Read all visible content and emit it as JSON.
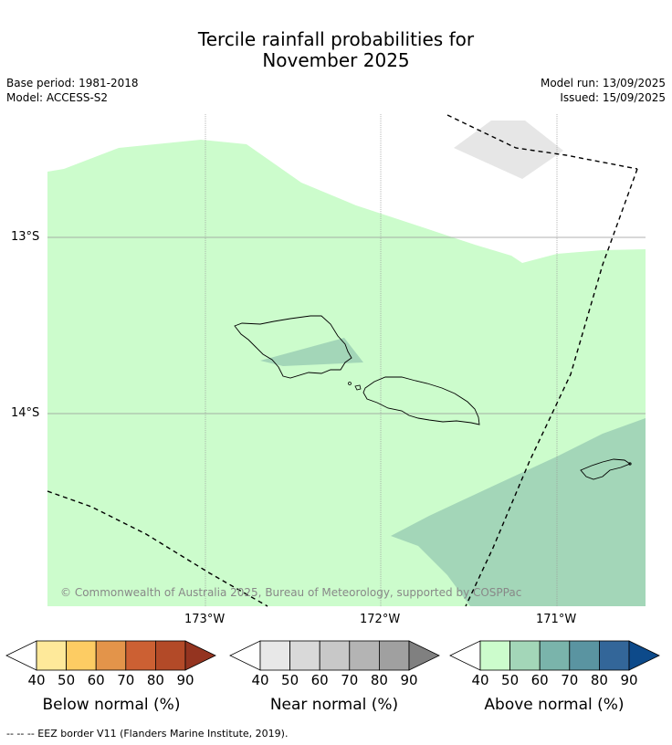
{
  "title_line1": "Tercile rainfall probabilities for",
  "title_line2": "November 2025",
  "base_period": "Base period: 1981-2018",
  "model": "Model: ACCESS-S2",
  "model_run": "Model run: 13/09/2025",
  "issued": "Issued: 15/09/2025",
  "lat_labels": [
    "13°S",
    "14°S"
  ],
  "lon_labels": [
    "173°W",
    "172°W",
    "171°W"
  ],
  "copyright": "© Commonwealth of Australia 2025, Bureau of Meteorology, supported by COSPPac",
  "colorbars": [
    {
      "label": "Below normal (%)",
      "colors": [
        "#ffffff",
        "#fee99a",
        "#fdcc63",
        "#e3944a",
        "#cc6033",
        "#b34a28",
        "#943420"
      ],
      "ticks": [
        "40",
        "50",
        "60",
        "70",
        "80",
        "90"
      ]
    },
    {
      "label": "Near normal (%)",
      "colors": [
        "#ffffff",
        "#e8e8e8",
        "#d9d9d9",
        "#c8c8c8",
        "#b4b4b4",
        "#a0a0a0",
        "#808080"
      ],
      "ticks": [
        "40",
        "50",
        "60",
        "70",
        "80",
        "90"
      ]
    },
    {
      "label": "Above normal (%)",
      "colors": [
        "#ffffff",
        "#ccfccc",
        "#a3d6b8",
        "#7ab4ab",
        "#5a94a1",
        "#336699",
        "#0d4a8a"
      ],
      "ticks": [
        "40",
        "50",
        "60",
        "70",
        "80",
        "90"
      ]
    }
  ],
  "footer": "--  --  -- EEZ border V11 (Flanders Marine Institute, 2019)."
}
